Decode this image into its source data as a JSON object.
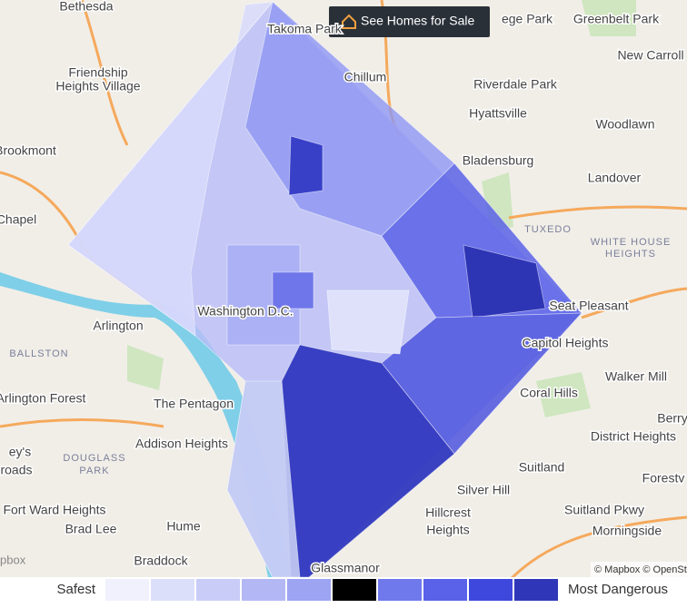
{
  "header": {
    "button": "See Homes for Sale"
  },
  "map": {
    "labels": [
      "Bethesda",
      "Takoma Park",
      "ege Park",
      "Greenbelt Park",
      "New Carroll",
      "Chillum",
      "Friendship",
      "Heights Village",
      "Riverdale Park",
      "Hyattsville",
      "Woodlawn",
      "Brookmont",
      "Bladensburg",
      "Landover",
      "Chapel",
      "TUXEDO",
      "WHITE HOUSE",
      "HEIGHTS",
      "Arlington",
      "Washington D.C.",
      "Seat Pleasant",
      "Capitol Heights",
      "BALLSTON",
      "Walker Mill",
      "Coral Hills",
      "Arlington Forest",
      "The Pentagon",
      "Berry",
      "Addison Heights",
      "District Heights",
      "DOUGLASS",
      "PARK",
      "Suitland",
      "Silver Hill",
      "Hillcrest",
      "Heights",
      "Fort Ward Heights",
      "Suitland Pkwy",
      "Brad Lee",
      "Hume",
      "Morningside",
      "Braddock",
      "Glassmanor",
      "Forestv",
      "ey's",
      "roads"
    ],
    "attribution": "© Mapbox © OpenSt",
    "logo": "pbox"
  },
  "legend": {
    "low": "Safest",
    "high": "Most Dangerous"
  }
}
